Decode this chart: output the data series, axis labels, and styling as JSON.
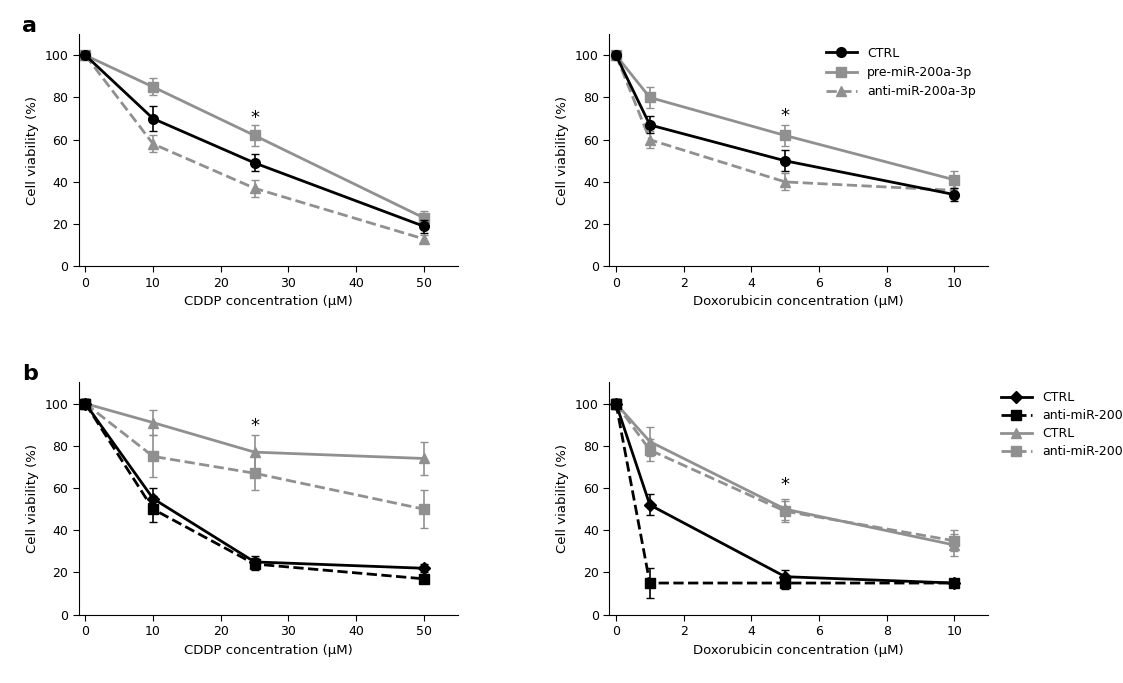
{
  "panel_a_cddp": {
    "x": [
      0,
      10,
      25,
      50
    ],
    "ctrl": [
      100,
      70,
      49,
      19
    ],
    "ctrl_err": [
      2,
      6,
      4,
      3
    ],
    "pre": [
      100,
      85,
      62,
      23
    ],
    "pre_err": [
      1,
      4,
      5,
      3
    ],
    "anti": [
      100,
      58,
      37,
      13
    ],
    "anti_err": [
      1,
      4,
      4,
      2
    ],
    "xlabel": "CDDP concentration (μM)",
    "ylabel": "Cell viability (%)",
    "star_x": 25,
    "star_y": 66,
    "xlim": [
      -1,
      55
    ],
    "ylim": [
      0,
      110
    ],
    "xticks": [
      0,
      10,
      20,
      30,
      40,
      50
    ]
  },
  "panel_a_dox": {
    "x": [
      0,
      1,
      5,
      10
    ],
    "ctrl": [
      100,
      67,
      50,
      34
    ],
    "ctrl_err": [
      2,
      4,
      5,
      3
    ],
    "pre": [
      100,
      80,
      62,
      41
    ],
    "pre_err": [
      2,
      5,
      5,
      4
    ],
    "anti": [
      100,
      60,
      40,
      36
    ],
    "anti_err": [
      2,
      4,
      4,
      3
    ],
    "xlabel": "Doxorubicin concentration (μM)",
    "ylabel": "Cell viability (%)",
    "star_x": 5,
    "star_y": 67,
    "xlim": [
      -0.2,
      11
    ],
    "ylim": [
      0,
      110
    ],
    "xticks": [
      0,
      2,
      4,
      6,
      8,
      10
    ]
  },
  "panel_b_cddp": {
    "x": [
      0,
      10,
      25,
      50
    ],
    "ctrl_b": [
      100,
      55,
      25,
      22
    ],
    "ctrl_b_err": [
      2,
      5,
      3,
      2
    ],
    "anti_b": [
      100,
      50,
      24,
      17
    ],
    "anti_b_err": [
      2,
      6,
      3,
      2
    ],
    "ctrl_mir": [
      100,
      91,
      77,
      74
    ],
    "ctrl_mir_err": [
      2,
      6,
      8,
      8
    ],
    "anti_mir": [
      100,
      75,
      67,
      50
    ],
    "anti_mir_err": [
      2,
      10,
      8,
      9
    ],
    "xlabel": "CDDP concentration (μM)",
    "ylabel": "Cell viability (%)",
    "star_x": 25,
    "star_y": 85,
    "xlim": [
      -1,
      55
    ],
    "ylim": [
      0,
      110
    ],
    "xticks": [
      0,
      10,
      20,
      30,
      40,
      50
    ]
  },
  "panel_b_dox": {
    "x": [
      0,
      1,
      5,
      10
    ],
    "ctrl_b": [
      100,
      52,
      18,
      15
    ],
    "ctrl_b_err": [
      2,
      5,
      3,
      2
    ],
    "anti_b": [
      100,
      15,
      15,
      15
    ],
    "anti_b_err": [
      2,
      7,
      3,
      2
    ],
    "ctrl_mir": [
      100,
      82,
      50,
      33
    ],
    "ctrl_mir_err": [
      2,
      7,
      5,
      5
    ],
    "anti_mir": [
      100,
      78,
      49,
      35
    ],
    "anti_mir_err": [
      2,
      5,
      5,
      5
    ],
    "xlabel": "Doxorubicin concentration (μM)",
    "ylabel": "Cell viability (%)",
    "star_x": 5,
    "star_y": 57,
    "xlim": [
      -0.2,
      11
    ],
    "ylim": [
      0,
      110
    ],
    "xticks": [
      0,
      2,
      4,
      6,
      8,
      10
    ]
  },
  "colors": {
    "black": "#000000",
    "gray": "#909090",
    "dark_gray": "#606060"
  }
}
